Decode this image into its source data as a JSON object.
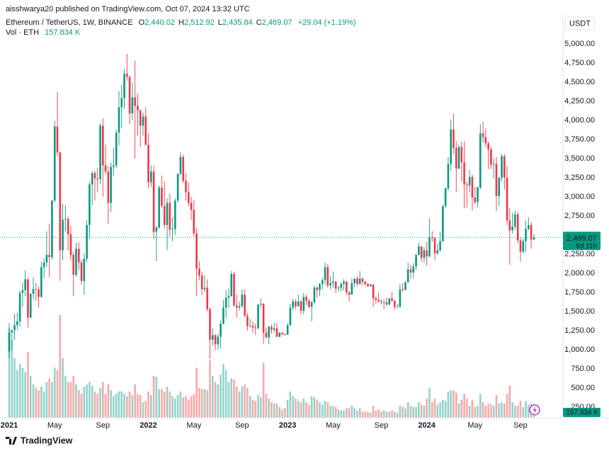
{
  "chart_data": {
    "type": "candlestick",
    "header": "aisshwarya20 published on TradingView.com, Oct 07, 2024 13:32 UTC",
    "symbol": "Ethereum / TetherUS, 1W, BINANCE",
    "ohlc_legend": [
      {
        "key": "O",
        "text": "2,440.02"
      },
      {
        "key": "H",
        "text": "2,512.92"
      },
      {
        "key": "L",
        "text": "2,435.84"
      },
      {
        "key": "C",
        "text": "2,469.07"
      }
    ],
    "change": "+29.04 (+1.19%)",
    "volume_title": "Vol · ETH",
    "volume_text": "157.834 K",
    "currency": "USDT",
    "countdown": "6d 11h",
    "brand": "TradingView",
    "up_color": "#089981",
    "down_color": "#f23645",
    "volume_up_color": "#92d2cc",
    "volume_down_color": "#f7a9a7",
    "grid": false,
    "ylim": [
      110,
      5370
    ],
    "yticks": [
      {
        "value": 250,
        "label": "250.00"
      },
      {
        "value": 500,
        "label": "500.00"
      },
      {
        "value": 750,
        "label": "750.00"
      },
      {
        "value": 1000,
        "label": "1,000.00"
      },
      {
        "value": 1250,
        "label": "1,250.00"
      },
      {
        "value": 1500,
        "label": "1,500.00"
      },
      {
        "value": 1750,
        "label": "1,750.00"
      },
      {
        "value": 2000,
        "label": "2,000.00"
      },
      {
        "value": 2250,
        "label": "2,250.00"
      },
      {
        "value": 2500,
        "label": "2,500.00"
      },
      {
        "value": 2750,
        "label": "2,750.00"
      },
      {
        "value": 3000,
        "label": "3,000.00"
      },
      {
        "value": 3250,
        "label": "3,250.00"
      },
      {
        "value": 3500,
        "label": "3,500.00"
      },
      {
        "value": 3750,
        "label": "3,750.00"
      },
      {
        "value": 4000,
        "label": "4,000.00"
      },
      {
        "value": 4250,
        "label": "4,250.00"
      },
      {
        "value": 4500,
        "label": "4,500.00"
      },
      {
        "value": 4750,
        "label": "4,750.00"
      },
      {
        "value": 5000,
        "label": "5,000.00"
      }
    ],
    "categories": [
      "2021",
      null,
      null,
      null,
      null,
      null,
      null,
      null,
      null,
      null,
      null,
      null,
      null,
      null,
      null,
      null,
      null,
      "May",
      null,
      null,
      null,
      null,
      null,
      null,
      null,
      null,
      null,
      null,
      null,
      null,
      null,
      null,
      null,
      null,
      null,
      "Sep",
      null,
      null,
      null,
      null,
      null,
      null,
      null,
      null,
      null,
      null,
      null,
      null,
      null,
      null,
      null,
      null,
      "2022",
      null,
      null,
      null,
      null,
      null,
      null,
      null,
      null,
      null,
      null,
      null,
      null,
      null,
      null,
      null,
      null,
      "May",
      null,
      null,
      null,
      null,
      null,
      null,
      null,
      null,
      null,
      null,
      null,
      null,
      null,
      null,
      null,
      null,
      null,
      "Sep",
      null,
      null,
      null,
      null,
      null,
      null,
      null,
      null,
      null,
      null,
      null,
      null,
      null,
      null,
      null,
      null,
      "2023",
      null,
      null,
      null,
      null,
      null,
      null,
      null,
      null,
      null,
      null,
      null,
      null,
      null,
      null,
      null,
      null,
      "May",
      null,
      null,
      null,
      null,
      null,
      null,
      null,
      null,
      null,
      null,
      null,
      null,
      null,
      null,
      null,
      null,
      null,
      "Sep",
      null,
      null,
      null,
      null,
      null,
      null,
      null,
      null,
      null,
      null,
      null,
      null,
      null,
      null,
      null,
      null,
      "2024",
      null,
      null,
      null,
      null,
      null,
      null,
      null,
      null,
      null,
      null,
      null,
      null,
      null,
      null,
      null,
      null,
      null,
      "May",
      null,
      null,
      null,
      null,
      null,
      null,
      null,
      null,
      null,
      null,
      null,
      null,
      null,
      null,
      null,
      null,
      "Sep",
      null,
      null,
      null,
      null,
      null
    ],
    "open": [
      975,
      1225,
      1255,
      1320,
      1370,
      1745,
      1780,
      1920,
      1420,
      1730,
      1795,
      1790,
      1690,
      2080,
      2140,
      2240,
      2210,
      2950,
      3920,
      3580,
      2300,
      2700,
      2710,
      2510,
      2240,
      1980,
      2320,
      2140,
      1900,
      2190,
      2630,
      3160,
      3310,
      3240,
      3230,
      3930,
      3410,
      3330,
      2920,
      3390,
      3410,
      3840,
      4170,
      4290,
      4610,
      4570,
      4090,
      4300,
      4190,
      4130,
      3930,
      4050,
      3680,
      3190,
      3330,
      2540,
      2600,
      3120,
      2880,
      2630,
      2920,
      2570,
      2580,
      2950,
      3300,
      3520,
      3210,
      3060,
      2920,
      2830,
      2520,
      2060,
      1970,
      1790,
      1810,
      1530,
      1130,
      1190,
      1070,
      1170,
      1340,
      1550,
      1680,
      1700,
      1990,
      1580,
      1550,
      1570,
      1720,
      1440,
      1310,
      1310,
      1290,
      1280,
      1590,
      1600,
      1220,
      1160,
      1300,
      1260,
      1280,
      1170,
      1220,
      1200,
      1196,
      1320,
      1550,
      1630,
      1570,
      1630,
      1510,
      1690,
      1640,
      1560,
      1620,
      1810,
      1780,
      1860,
      1910,
      2080,
      1840,
      1870,
      1890,
      1800,
      1810,
      1860,
      1890,
      1750,
      1720,
      1870,
      1930,
      1860,
      1930,
      1890,
      1860,
      1830,
      1850,
      1670,
      1650,
      1630,
      1620,
      1620,
      1590,
      1670,
      1640,
      1560,
      1560,
      1790,
      1780,
      1880,
      2050,
      2010,
      2090,
      2240,
      2350,
      2200,
      2300,
      2220,
      2470,
      2460,
      2260,
      2300,
      2420,
      2880,
      3110,
      3430,
      3880,
      3640,
      3370,
      3650,
      3450,
      3160,
      3150,
      3260,
      2990,
      2930,
      3120,
      3830,
      3780,
      3700,
      3620,
      3420,
      3430,
      3010,
      3250,
      3530,
      3250,
      2690,
      2560,
      2610,
      2770,
      2430,
      2280,
      2420,
      2580,
      2630,
      2440.02
    ],
    "high": [
      1350,
      1260,
      1470,
      1480,
      1770,
      1880,
      2040,
      1940,
      1740,
      1945,
      1875,
      1830,
      2150,
      2200,
      2550,
      2650,
      2960,
      3990,
      4370,
      3590,
      2910,
      2890,
      2740,
      2620,
      2280,
      2400,
      2410,
      2180,
      2260,
      2700,
      3190,
      3330,
      3340,
      3370,
      3960,
      4030,
      3680,
      3400,
      3450,
      3640,
      3880,
      4380,
      4460,
      4670,
      4870,
      4580,
      4500,
      4780,
      4350,
      4140,
      4100,
      4170,
      3830,
      3410,
      3410,
      2620,
      3150,
      3280,
      3200,
      2980,
      3040,
      2730,
      2980,
      3310,
      3580,
      3550,
      3310,
      3190,
      3000,
      2960,
      2600,
      2160,
      2020,
      1970,
      1920,
      1550,
      1280,
      1200,
      1210,
      1380,
      1650,
      1780,
      1800,
      2030,
      2020,
      1720,
      1630,
      1790,
      1790,
      1480,
      1400,
      1370,
      1340,
      1600,
      1670,
      1610,
      1290,
      1310,
      1330,
      1350,
      1350,
      1230,
      1230,
      1220,
      1350,
      1600,
      1670,
      1660,
      1720,
      1650,
      1740,
      1720,
      1660,
      1640,
      1840,
      1830,
      1870,
      1940,
      2140,
      2120,
      1960,
      2020,
      1900,
      1830,
      1880,
      1920,
      1900,
      1770,
      1930,
      1930,
      1960,
      2030,
      1940,
      1900,
      1870,
      1860,
      1860,
      1700,
      1750,
      1660,
      1660,
      1680,
      1680,
      1750,
      1650,
      1600,
      1860,
      1870,
      1900,
      2140,
      2110,
      2130,
      2250,
      2400,
      2350,
      2340,
      2410,
      2720,
      2550,
      2470,
      2390,
      2540,
      2890,
      3120,
      3520,
      4010,
      4090,
      3730,
      3680,
      3720,
      3730,
      3200,
      3350,
      3290,
      3130,
      3140,
      3950,
      3980,
      3890,
      3720,
      3650,
      3500,
      3520,
      3260,
      3560,
      3560,
      3400,
      2850,
      2790,
      2820,
      2800,
      2470,
      2460,
      2690,
      2730,
      2670,
      2512.92
    ],
    "low": [
      890,
      1000,
      1130,
      1260,
      1300,
      1560,
      1700,
      1290,
      1410,
      1660,
      1640,
      1550,
      1680,
      1930,
      2080,
      1950,
      2180,
      2930,
      3530,
      1900,
      2170,
      2550,
      2300,
      2170,
      1700,
      1950,
      2040,
      1850,
      1720,
      2150,
      2450,
      2890,
      2950,
      3060,
      3170,
      3000,
      3300,
      2650,
      2800,
      3280,
      3380,
      3670,
      3900,
      4150,
      4520,
      3950,
      4000,
      3500,
      3800,
      3650,
      3800,
      3670,
      3110,
      3130,
      2450,
      2160,
      2580,
      2850,
      2580,
      2300,
      2480,
      2420,
      2500,
      2920,
      3280,
      3180,
      2950,
      2880,
      2700,
      2480,
      1700,
      1910,
      1710,
      1750,
      1500,
      880,
      1050,
      1000,
      1000,
      1020,
      1330,
      1410,
      1550,
      1690,
      1560,
      1420,
      1510,
      1550,
      1430,
      1250,
      1290,
      1220,
      1190,
      1270,
      1540,
      1080,
      1150,
      1070,
      1210,
      1220,
      1160,
      1160,
      1190,
      1180,
      1190,
      1310,
      1510,
      1530,
      1560,
      1460,
      1460,
      1580,
      1540,
      1370,
      1600,
      1680,
      1700,
      1790,
      1850,
      1810,
      1790,
      1810,
      1740,
      1760,
      1760,
      1780,
      1710,
      1630,
      1720,
      1820,
      1830,
      1850,
      1840,
      1830,
      1820,
      1820,
      1560,
      1600,
      1620,
      1590,
      1530,
      1570,
      1580,
      1620,
      1520,
      1550,
      1550,
      1760,
      1780,
      1880,
      1930,
      1930,
      2040,
      2230,
      2150,
      2140,
      2100,
      2210,
      2410,
      2170,
      2240,
      2280,
      2410,
      2850,
      3080,
      3340,
      3560,
      3060,
      3360,
      3200,
      2850,
      2860,
      3060,
      2820,
      2900,
      2860,
      3100,
      3710,
      3650,
      3360,
      3360,
      3240,
      2810,
      2880,
      3200,
      3100,
      2630,
      2110,
      2520,
      2570,
      2390,
      2150,
      2260,
      2270,
      2560,
      2320,
      2435.84
    ],
    "close": [
      1225,
      1255,
      1320,
      1370,
      1745,
      1780,
      1920,
      1420,
      1730,
      1795,
      1790,
      1690,
      2080,
      2140,
      2240,
      2210,
      2950,
      3920,
      3580,
      2300,
      2700,
      2710,
      2510,
      2240,
      1980,
      2320,
      2140,
      1900,
      2190,
      2630,
      3160,
      3310,
      3240,
      3230,
      3930,
      3410,
      3330,
      2920,
      3390,
      3410,
      3840,
      4170,
      4290,
      4610,
      4570,
      4090,
      4300,
      4190,
      4130,
      3930,
      4050,
      3680,
      3190,
      3330,
      2540,
      2600,
      3120,
      2880,
      2630,
      2920,
      2570,
      2580,
      2950,
      3300,
      3520,
      3210,
      3060,
      2920,
      2830,
      2520,
      2060,
      1970,
      1790,
      1810,
      1530,
      1130,
      1190,
      1070,
      1170,
      1340,
      1550,
      1680,
      1700,
      1990,
      1580,
      1550,
      1570,
      1720,
      1440,
      1310,
      1310,
      1290,
      1280,
      1590,
      1600,
      1220,
      1160,
      1300,
      1260,
      1280,
      1170,
      1220,
      1200,
      1196,
      1320,
      1550,
      1630,
      1570,
      1630,
      1510,
      1690,
      1640,
      1560,
      1620,
      1810,
      1780,
      1860,
      1910,
      2080,
      1840,
      1870,
      1890,
      1800,
      1810,
      1860,
      1890,
      1750,
      1720,
      1870,
      1930,
      1860,
      1930,
      1890,
      1860,
      1830,
      1850,
      1670,
      1650,
      1630,
      1620,
      1620,
      1590,
      1670,
      1640,
      1560,
      1560,
      1790,
      1780,
      1880,
      2050,
      2010,
      2090,
      2240,
      2350,
      2200,
      2300,
      2220,
      2470,
      2460,
      2260,
      2300,
      2420,
      2880,
      3110,
      3430,
      3880,
      3640,
      3370,
      3650,
      3450,
      3160,
      3150,
      3260,
      2990,
      2930,
      3120,
      3830,
      3780,
      3700,
      3620,
      3420,
      3430,
      3010,
      3250,
      3530,
      3250,
      2690,
      2560,
      2610,
      2770,
      2430,
      2280,
      2420,
      2580,
      2630,
      2440,
      2469.07
    ],
    "volume": [
      7500000,
      6500000,
      5000000,
      4000000,
      4500000,
      4200000,
      3800000,
      5500000,
      3500000,
      2800000,
      2500000,
      2300000,
      2600000,
      2200000,
      3000000,
      3300000,
      3000000,
      4200000,
      4000000,
      8600000,
      5000000,
      3500000,
      3000000,
      3000000,
      3500000,
      2800000,
      2300000,
      2000000,
      2600000,
      2800000,
      3000000,
      2700000,
      2200000,
      2000000,
      2500000,
      3000000,
      2000000,
      2800000,
      2300000,
      1800000,
      2000000,
      2200000,
      2200000,
      2000000,
      1800000,
      2200000,
      1900000,
      2800000,
      2000000,
      1900000,
      1300000,
      1400000,
      2200000,
      1900000,
      3500000,
      3400000,
      2400000,
      2400000,
      2200000,
      2600000,
      2200000,
      1800000,
      1600000,
      1900000,
      2200000,
      1700000,
      1800000,
      1500000,
      1800000,
      2000000,
      4200000,
      2500000,
      2400000,
      2400000,
      2300000,
      4800000,
      3500000,
      3000000,
      2800000,
      3600000,
      4500000,
      4000000,
      3000000,
      3300000,
      3200000,
      2600000,
      2200000,
      2600000,
      2800000,
      2500000,
      1800000,
      1500000,
      1400000,
      1900000,
      1700000,
      4600000,
      2000000,
      1600000,
      1300000,
      1200000,
      1200000,
      900000,
      700000,
      800000,
      1500000,
      2200000,
      1800000,
      1600000,
      1400000,
      1300000,
      1600000,
      1300000,
      1100000,
      1800000,
      1700000,
      1500000,
      1300000,
      1100000,
      1400000,
      1300000,
      1000000,
      1000000,
      900000,
      700000,
      600000,
      600000,
      800000,
      800000,
      1000000,
      800000,
      600000,
      800000,
      500000,
      500000,
      500000,
      400000,
      1000000,
      600000,
      700000,
      500000,
      600000,
      500000,
      500000,
      600000,
      500000,
      400000,
      1000000,
      900000,
      800000,
      1300000,
      1000000,
      900000,
      900000,
      1300000,
      1100000,
      1000000,
      1600000,
      2500000,
      1300000,
      1600000,
      1100000,
      1300000,
      1500000,
      1400000,
      2200000,
      2300000,
      2300000,
      2100000,
      1200000,
      1500000,
      2000000,
      1600000,
      1000000,
      1500000,
      900000,
      1000000,
      2000000,
      1300000,
      1000000,
      1200000,
      1100000,
      1000000,
      1900000,
      1200000,
      1300000,
      1200000,
      2000000,
      2700000,
      1300000,
      1000000,
      1000000,
      1400000,
      900000,
      1400000,
      1100000,
      1200000,
      157834
    ]
  }
}
